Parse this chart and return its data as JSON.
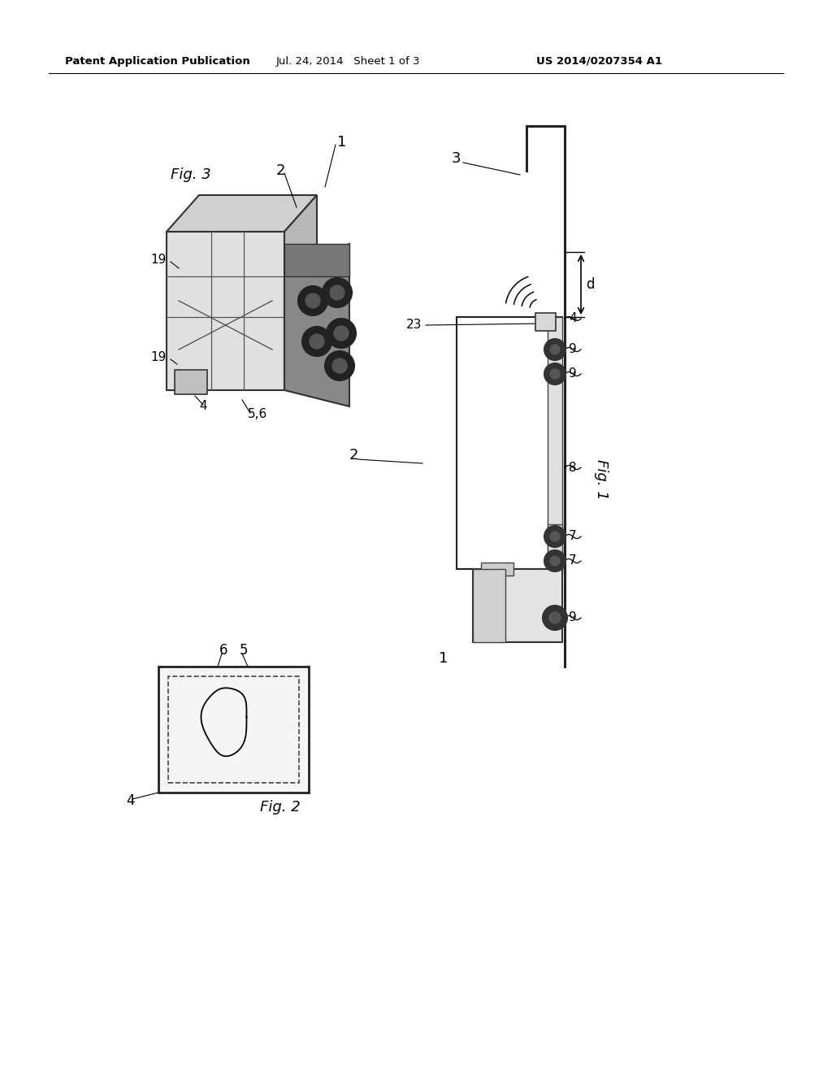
{
  "background_color": "#ffffff",
  "header_left": "Patent Application Publication",
  "header_mid": "Jul. 24, 2014   Sheet 1 of 3",
  "header_right": "US 2014/0207354 A1",
  "fig_label_1": "Fig. 1",
  "fig_label_2": "Fig. 2",
  "fig_label_3": "Fig. 3",
  "line_color": "#333333"
}
